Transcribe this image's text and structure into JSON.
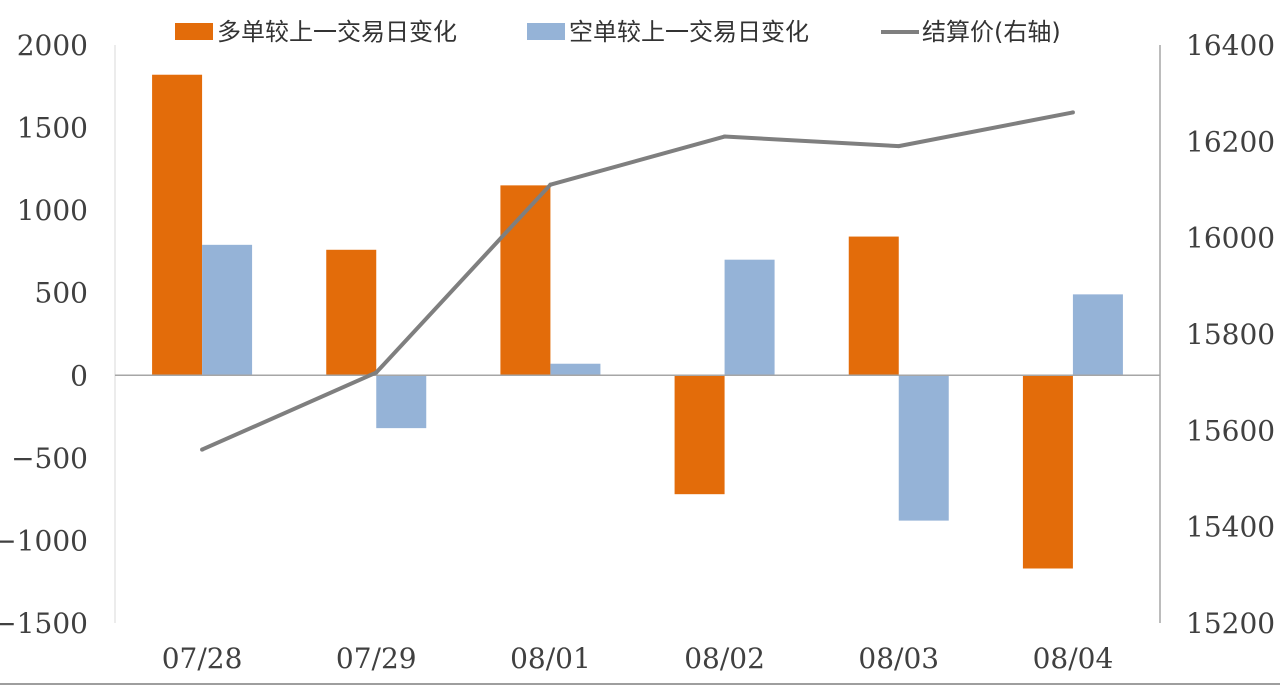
{
  "chart_data": {
    "type": "bar",
    "categories": [
      "07/28",
      "07/29",
      "08/01",
      "08/02",
      "08/03",
      "08/04"
    ],
    "series": [
      {
        "name": "多单较上一交易日变化",
        "kind": "bar",
        "axis": "left",
        "color": "#E36C0A",
        "values": [
          1820,
          760,
          1150,
          -720,
          840,
          -1170
        ]
      },
      {
        "name": "空单较上一交易日变化",
        "kind": "bar",
        "axis": "left",
        "color": "#95B3D7",
        "values": [
          790,
          -320,
          70,
          700,
          -880,
          490
        ]
      },
      {
        "name": "结算价(右轴)",
        "kind": "line",
        "axis": "right",
        "color": "#7F7F7F",
        "values": [
          15560,
          15720,
          16110,
          16210,
          16190,
          16260
        ]
      }
    ],
    "y_left": {
      "ylim": [
        -1500,
        2000
      ],
      "ticks": [
        2000,
        1500,
        1000,
        500,
        0,
        -500,
        -1000,
        -1500
      ]
    },
    "y_right": {
      "ylim": [
        15200,
        16400
      ],
      "ticks": [
        16400,
        16200,
        16000,
        15800,
        15600,
        15400,
        15200
      ]
    },
    "legend_position": "top"
  }
}
